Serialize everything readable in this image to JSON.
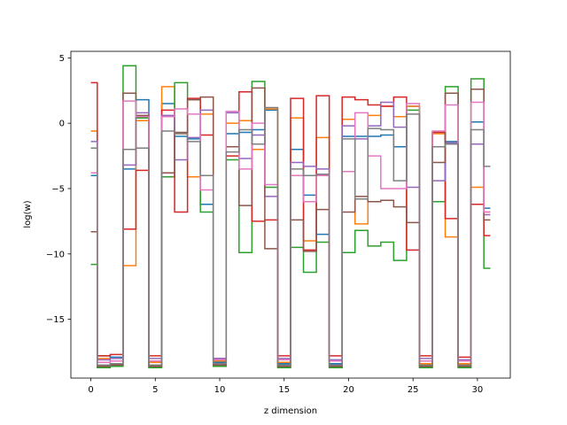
{
  "chart_data": {
    "type": "line",
    "drawstyle": "steps-mid",
    "title": "",
    "xlabel": "z dimension",
    "ylabel": "log(w)",
    "xlim": [
      -1.55,
      32.55
    ],
    "ylim": [
      -19.5,
      5.5
    ],
    "xticks": [
      0,
      5,
      10,
      15,
      20,
      25,
      30
    ],
    "xtick_labels": [
      "0",
      "5",
      "10",
      "15",
      "20",
      "25",
      "30"
    ],
    "yticks": [
      -15,
      -10,
      -5,
      0,
      5
    ],
    "ytick_labels": [
      "−15",
      "−10",
      "−5",
      "0",
      "5"
    ],
    "grid": false,
    "legend": "none",
    "x": [
      0,
      1,
      2,
      3,
      4,
      5,
      6,
      7,
      8,
      9,
      10,
      11,
      12,
      13,
      14,
      15,
      16,
      17,
      18,
      19,
      20,
      21,
      22,
      23,
      24,
      25,
      26,
      27,
      28,
      29,
      30,
      31
    ],
    "series": [
      {
        "color": "#1f77b4",
        "values": [
          -4.0,
          -17.8,
          -17.9,
          -3.5,
          1.8,
          -18.5,
          1.5,
          -1.0,
          -1.2,
          -6.2,
          -18.3,
          -0.8,
          -0.7,
          -0.5,
          1.0,
          -18.4,
          -2.0,
          -5.5,
          -8.5,
          -18.4,
          -1.0,
          -1.0,
          -1.0,
          -0.9,
          -1.8,
          1.3,
          -18.2,
          -0.7,
          -1.4,
          -18.5,
          0.1,
          -6.5
        ]
      },
      {
        "color": "#ff7f0e",
        "values": [
          -0.6,
          -18.0,
          -18.2,
          -10.9,
          0.2,
          -18.3,
          2.8,
          -0.8,
          -4.1,
          0.7,
          -18.2,
          0.0,
          0.2,
          -2.0,
          1.1,
          -18.3,
          0.4,
          -9.0,
          -1.1,
          -18.2,
          0.3,
          -7.7,
          0.6,
          1.3,
          0.5,
          1.3,
          -18.4,
          -0.8,
          -8.7,
          -18.4,
          -4.9,
          -6.8
        ]
      },
      {
        "color": "#2ca02c",
        "values": [
          -10.8,
          -18.7,
          -18.6,
          4.4,
          0.4,
          -18.7,
          -4.1,
          3.1,
          1.8,
          -6.8,
          -18.6,
          -2.8,
          -9.9,
          3.2,
          -4.9,
          -18.7,
          -9.5,
          -11.4,
          -9.1,
          -18.7,
          -9.9,
          -8.2,
          -9.4,
          -9.1,
          -10.5,
          1.0,
          -18.7,
          -6.0,
          2.8,
          -18.7,
          3.4,
          -11.1
        ]
      },
      {
        "color": "#d62728",
        "values": [
          3.1,
          -17.8,
          -17.7,
          -8.1,
          -3.6,
          -17.8,
          1.0,
          -6.8,
          1.9,
          -0.9,
          -18.0,
          -2.5,
          2.4,
          -7.5,
          -7.4,
          -17.8,
          1.9,
          -9.7,
          2.1,
          -17.8,
          2.0,
          1.8,
          1.4,
          1.3,
          2.0,
          -9.7,
          -17.8,
          -0.7,
          -7.3,
          -17.9,
          -6.2,
          -8.6
        ]
      },
      {
        "color": "#9467bd",
        "values": [
          -1.4,
          -18.1,
          -18.0,
          -3.2,
          0.8,
          -18.0,
          0.6,
          -2.8,
          -1.1,
          1.0,
          -18.0,
          0.8,
          -2.7,
          -0.9,
          -5.6,
          -18.0,
          -3.0,
          -3.3,
          -3.5,
          -18.1,
          -0.2,
          -1.2,
          -0.2,
          1.6,
          -0.3,
          -4.9,
          -18.0,
          -4.4,
          -1.5,
          -18.1,
          -1.6,
          -7.0
        ]
      },
      {
        "color": "#8c564b",
        "values": [
          -8.3,
          -18.6,
          -18.5,
          2.3,
          0.6,
          -18.6,
          -3.8,
          -0.7,
          1.8,
          2.0,
          -18.5,
          -1.8,
          -6.3,
          2.7,
          -9.6,
          -18.6,
          -7.4,
          -9.8,
          -6.6,
          -18.6,
          -6.8,
          -5.6,
          -6.0,
          -5.9,
          -6.4,
          -7.6,
          -18.6,
          -3.0,
          2.3,
          -18.6,
          2.6,
          -7.4
        ]
      },
      {
        "color": "#e377c2",
        "values": [
          -3.8,
          -18.3,
          -18.2,
          1.7,
          0.5,
          -18.2,
          0.5,
          1.1,
          0.7,
          -5.1,
          -18.1,
          0.9,
          -3.5,
          0.0,
          -4.7,
          -18.1,
          -4.0,
          -6.0,
          -4.0,
          -18.2,
          -3.7,
          0.8,
          -2.5,
          -5.0,
          -5.0,
          1.5,
          -18.2,
          -0.6,
          1.4,
          -18.2,
          1.6,
          -6.8
        ]
      },
      {
        "color": "#7f7f7f",
        "values": [
          -1.9,
          -18.5,
          -18.4,
          -2.0,
          -1.9,
          -18.5,
          -0.6,
          -0.8,
          -1.4,
          -4.0,
          -18.4,
          -2.2,
          -0.5,
          -1.6,
          1.2,
          -18.5,
          -3.5,
          -4.0,
          -3.9,
          -18.5,
          -1.2,
          -5.8,
          -0.4,
          -0.5,
          -4.4,
          0.7,
          -18.5,
          -1.8,
          -1.6,
          -18.5,
          -0.5,
          -3.3
        ]
      }
    ]
  }
}
